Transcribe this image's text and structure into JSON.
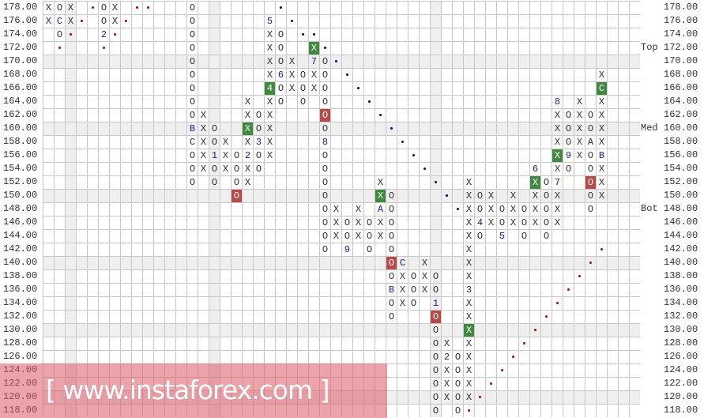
{
  "chart_data": {
    "type": "point-and-figure",
    "box_size": 2,
    "price_ticks": [
      "178.00",
      "176.00",
      "174.00",
      "172.00",
      "170.00",
      "168.00",
      "166.00",
      "164.00",
      "162.00",
      "160.00",
      "158.00",
      "156.00",
      "154.00",
      "152.00",
      "150.00",
      "148.00",
      "146.00",
      "144.00",
      "142.00",
      "140.00",
      "138.00",
      "136.00",
      "134.00",
      "132.00",
      "130.00",
      "128.00",
      "126.00",
      "124.00",
      "122.00",
      "120.00",
      "118.00"
    ],
    "ylim": [
      118,
      178
    ],
    "level_labels": [
      {
        "text": "Top",
        "price": 172
      },
      {
        "text": "Med",
        "price": 160
      },
      {
        "text": "Bot",
        "price": 148
      }
    ],
    "shaded_rows": [
      170,
      160,
      150,
      140,
      130,
      120
    ],
    "shaded_columns": [
      2,
      15,
      35
    ],
    "colors": {
      "highlight_x": "#3f8a3f",
      "highlight_o": "#b94a48",
      "month_digit": "#1a1a9a",
      "trend_red": "#c00000",
      "trend_blue": "#00008b"
    },
    "columns": [
      {
        "col": 0,
        "kind": "X",
        "top": 178,
        "cells": [
          "X",
          "X"
        ]
      },
      {
        "col": 1,
        "kind": "O",
        "top": 178,
        "cells": [
          "O",
          "C",
          "O"
        ]
      },
      {
        "col": 2,
        "kind": "X",
        "top": 178,
        "cells": [
          "X",
          "X"
        ]
      },
      {
        "col": 5,
        "kind": "O",
        "top": 178,
        "cells": [
          "O",
          "O",
          "2"
        ]
      },
      {
        "col": 6,
        "kind": "X",
        "top": 178,
        "cells": [
          "X",
          "X"
        ]
      },
      {
        "col": 13,
        "kind": "O",
        "top": 178,
        "cells": [
          "O",
          "O",
          "O",
          "O",
          "O",
          "O",
          "O",
          "O",
          "O",
          "B",
          "C",
          "O",
          "O",
          "O"
        ]
      },
      {
        "col": 14,
        "kind": "X",
        "top": 162,
        "cells": [
          "X",
          "X",
          "X",
          "X",
          "X"
        ]
      },
      {
        "col": 15,
        "kind": "O",
        "top": 160,
        "cells": [
          "O",
          "O",
          "1",
          "O",
          "O"
        ]
      },
      {
        "col": 16,
        "kind": "X",
        "top": 158,
        "cells": [
          "X",
          "X",
          "X"
        ]
      },
      {
        "col": 17,
        "kind": "O",
        "top": 156,
        "cells": [
          "O",
          "O",
          "O",
          "O!"
        ]
      },
      {
        "col": 18,
        "kind": "X",
        "top": 164,
        "cells": [
          "X",
          "X",
          "X!",
          "X",
          "2",
          "X",
          "X"
        ]
      },
      {
        "col": 19,
        "kind": "O",
        "top": 162,
        "cells": [
          "O",
          "O",
          "3",
          "O",
          "O"
        ]
      },
      {
        "col": 20,
        "kind": "X",
        "top": 176,
        "cells": [
          "5",
          "X",
          "X",
          "X",
          "X",
          "4!",
          "X",
          "X",
          "X",
          "X",
          "X"
        ]
      },
      {
        "col": 21,
        "kind": "O",
        "top": 174,
        "cells": [
          "O",
          "O",
          "O",
          "6",
          "O",
          "O"
        ]
      },
      {
        "col": 22,
        "kind": "X",
        "top": 170,
        "cells": [
          "X",
          "X",
          "X"
        ]
      },
      {
        "col": 23,
        "kind": "O",
        "top": 168,
        "cells": [
          "O",
          "O",
          "O"
        ]
      },
      {
        "col": 24,
        "kind": "X",
        "top": 172,
        "cells": [
          "X!",
          "7",
          "X",
          "X"
        ]
      },
      {
        "col": 25,
        "kind": "O",
        "top": 170,
        "cells": [
          "O",
          "O",
          "O",
          "O",
          "O!",
          "O",
          "8",
          "O",
          "O",
          "O",
          "O",
          "O",
          "O",
          "O",
          "O"
        ]
      },
      {
        "col": 26,
        "kind": "X",
        "top": 148,
        "cells": [
          "X",
          "X",
          "X"
        ]
      },
      {
        "col": 27,
        "kind": "O",
        "top": 146,
        "cells": [
          "O",
          "O",
          "9"
        ]
      },
      {
        "col": 28,
        "kind": "X",
        "top": 148,
        "cells": [
          "X",
          "X",
          "X"
        ]
      },
      {
        "col": 29,
        "kind": "O",
        "top": 146,
        "cells": [
          "O",
          "O",
          "O"
        ]
      },
      {
        "col": 30,
        "kind": "X",
        "top": 152,
        "cells": [
          "X",
          "X!",
          "A",
          "X",
          "X"
        ]
      },
      {
        "col": 31,
        "kind": "O",
        "top": 150,
        "cells": [
          "O",
          "O",
          "O",
          "O",
          "O",
          "O!",
          "O",
          "B",
          "O",
          "O"
        ]
      },
      {
        "col": 32,
        "kind": "X",
        "top": 140,
        "cells": [
          "C",
          "X",
          "X",
          "X"
        ]
      },
      {
        "col": 33,
        "kind": "O",
        "top": 138,
        "cells": [
          "O",
          "O",
          "O"
        ]
      },
      {
        "col": 34,
        "kind": "X",
        "top": 140,
        "cells": [
          "X",
          "X",
          "X"
        ]
      },
      {
        "col": 35,
        "kind": "O",
        "top": 138,
        "cells": [
          "O",
          "O",
          "1",
          "O!",
          "O",
          "O",
          "O",
          "O",
          "O",
          "O",
          "O"
        ]
      },
      {
        "col": 36,
        "kind": "X",
        "top": 128,
        "cells": [
          "X",
          "2",
          "X",
          "X",
          "X"
        ]
      },
      {
        "col": 37,
        "kind": "O",
        "top": 126,
        "cells": [
          "O",
          "O",
          "O",
          "O",
          "O"
        ]
      },
      {
        "col": 38,
        "kind": "X",
        "top": 152,
        "cells": [
          "X",
          "X",
          "X",
          "X",
          "X",
          "X",
          "X",
          "X",
          "3",
          "X",
          "X",
          "X!",
          "X",
          "X",
          "X",
          "X",
          "X"
        ]
      },
      {
        "col": 39,
        "kind": "O",
        "top": 150,
        "cells": [
          "O",
          "O",
          "4",
          "O"
        ]
      },
      {
        "col": 40,
        "kind": "X",
        "top": 150,
        "cells": [
          "X",
          "X",
          "X"
        ]
      },
      {
        "col": 41,
        "kind": "O",
        "top": 148,
        "cells": [
          "O",
          "O",
          "5"
        ]
      },
      {
        "col": 42,
        "kind": "X",
        "top": 150,
        "cells": [
          "X",
          "X",
          "X"
        ]
      },
      {
        "col": 43,
        "kind": "O",
        "top": 148,
        "cells": [
          "O",
          "O",
          "O"
        ]
      },
      {
        "col": 44,
        "kind": "X",
        "top": 154,
        "cells": [
          "6",
          "X!",
          "X",
          "X",
          "X"
        ]
      },
      {
        "col": 45,
        "kind": "O",
        "top": 152,
        "cells": [
          "O",
          "O",
          "O",
          "O",
          "O"
        ]
      },
      {
        "col": 46,
        "kind": "X",
        "top": 164,
        "cells": [
          "8",
          "X",
          "X",
          "X",
          "X!",
          "X",
          "7",
          "X",
          "X",
          "X"
        ]
      },
      {
        "col": 47,
        "kind": "O",
        "top": 162,
        "cells": [
          "O",
          "O",
          "O",
          "9",
          "O"
        ]
      },
      {
        "col": 48,
        "kind": "X",
        "top": 164,
        "cells": [
          "X",
          "X",
          "X",
          "X",
          "X"
        ]
      },
      {
        "col": 49,
        "kind": "O",
        "top": 162,
        "cells": [
          "O",
          "O",
          "A",
          "O",
          "O",
          "O!",
          "O",
          "O"
        ]
      },
      {
        "col": 50,
        "kind": "X",
        "top": 168,
        "cells": [
          "X",
          "C!",
          "X",
          "X",
          "X",
          "X",
          "B",
          "X",
          "X",
          "X"
        ]
      }
    ],
    "trendlines": [
      {
        "color": "red",
        "points": [
          [
            1,
            172
          ],
          [
            2,
            174
          ],
          [
            3,
            176
          ],
          [
            4,
            178
          ],
          [
            5,
            172
          ],
          [
            6,
            174
          ],
          [
            7,
            176
          ],
          [
            8,
            178
          ],
          [
            9,
            178
          ]
        ]
      },
      {
        "color": "blue",
        "points": [
          [
            21,
            178
          ],
          [
            22,
            176
          ],
          [
            23,
            174
          ],
          [
            24,
            174
          ],
          [
            25,
            172
          ],
          [
            26,
            170
          ],
          [
            27,
            168
          ],
          [
            28,
            166
          ],
          [
            29,
            164
          ],
          [
            30,
            162
          ],
          [
            31,
            160
          ],
          [
            32,
            158
          ],
          [
            33,
            156
          ],
          [
            34,
            154
          ],
          [
            35,
            152
          ],
          [
            36,
            150
          ],
          [
            37,
            148
          ]
        ]
      },
      {
        "color": "red",
        "points": [
          [
            38,
            118
          ],
          [
            39,
            120
          ],
          [
            40,
            122
          ],
          [
            41,
            124
          ],
          [
            42,
            126
          ],
          [
            43,
            128
          ],
          [
            44,
            130
          ],
          [
            45,
            132
          ],
          [
            46,
            134
          ],
          [
            47,
            136
          ],
          [
            48,
            138
          ],
          [
            49,
            140
          ],
          [
            50,
            142
          ]
        ]
      }
    ]
  },
  "watermark": "[ www.instaforex.com ]"
}
